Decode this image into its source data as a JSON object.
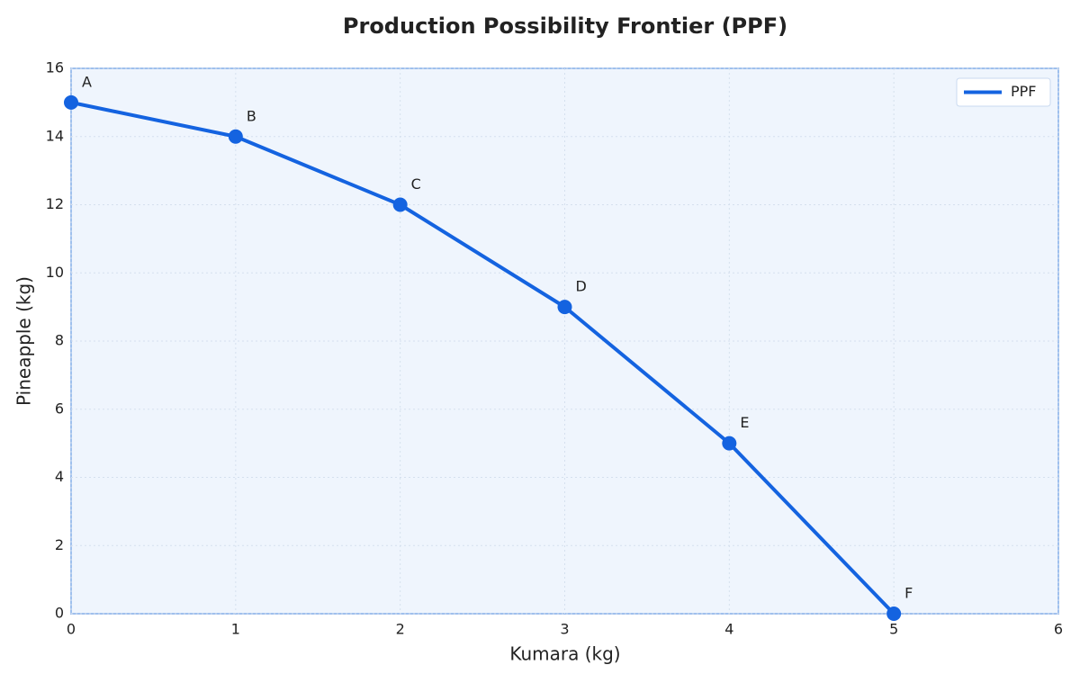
{
  "chart_data": {
    "type": "line",
    "title": "Production Possibility Frontier (PPF)",
    "x_label": "Kumara (kg)",
    "y_label": "Pineapple (kg)",
    "x": [
      0,
      1,
      2,
      3,
      4,
      5
    ],
    "series": [
      {
        "name": "PPF",
        "color": "#1463e0",
        "values": [
          15,
          14,
          12,
          9,
          5,
          0
        ]
      }
    ],
    "point_labels": [
      "A",
      "B",
      "C",
      "D",
      "E",
      "F"
    ],
    "xlim": [
      0,
      6
    ],
    "xticks": [
      0,
      1,
      2,
      3,
      4,
      5,
      6
    ],
    "ylim": [
      0,
      16
    ],
    "yticks": [
      0,
      2,
      4,
      6,
      8,
      10,
      12,
      14,
      16
    ],
    "grid": true,
    "legend": "upper right"
  }
}
